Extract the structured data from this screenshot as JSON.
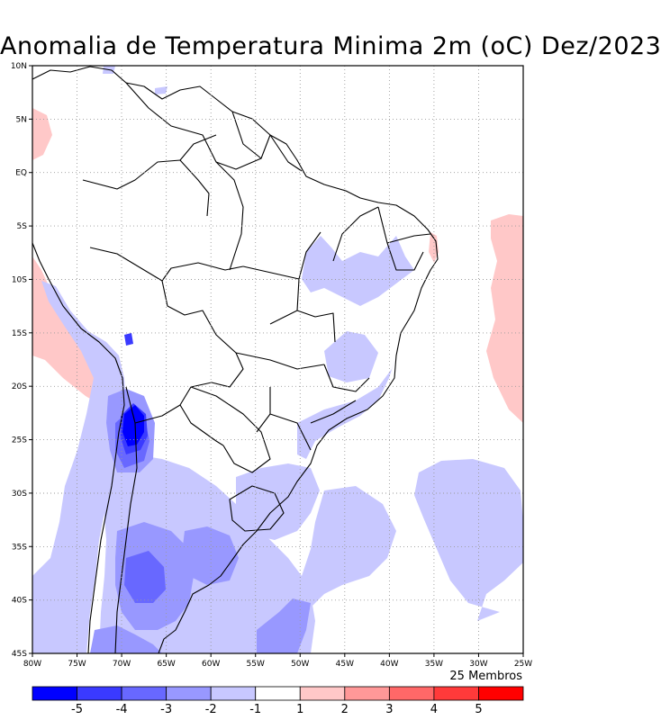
{
  "title": "Anomalia de Temperatura Minima 2m (oC) Dez/2023",
  "members_label": "25 Membros",
  "map": {
    "lat_labels": [
      "10N",
      "5N",
      "EQ",
      "5S",
      "10S",
      "15S",
      "20S",
      "25S",
      "30S",
      "35S",
      "40S",
      "45S"
    ],
    "lon_labels": [
      "80W",
      "75W",
      "70W",
      "65W",
      "60W",
      "55W",
      "50W",
      "45W",
      "40W",
      "35W",
      "30W",
      "25W"
    ],
    "lat_range": [
      -45,
      10
    ],
    "lon_range": [
      -80,
      -25
    ],
    "gridlines": true
  },
  "colorbar": {
    "labels": [
      "-5",
      "-4",
      "-3",
      "-2",
      "-1",
      "1",
      "2",
      "3",
      "4",
      "5"
    ],
    "colors": [
      "#0000ff",
      "#3a3aff",
      "#6868ff",
      "#9898ff",
      "#c8c8ff",
      "#ffffff",
      "#ffc8c8",
      "#ff9898",
      "#ff6868",
      "#ff3a3a",
      "#ff0000"
    ]
  }
}
